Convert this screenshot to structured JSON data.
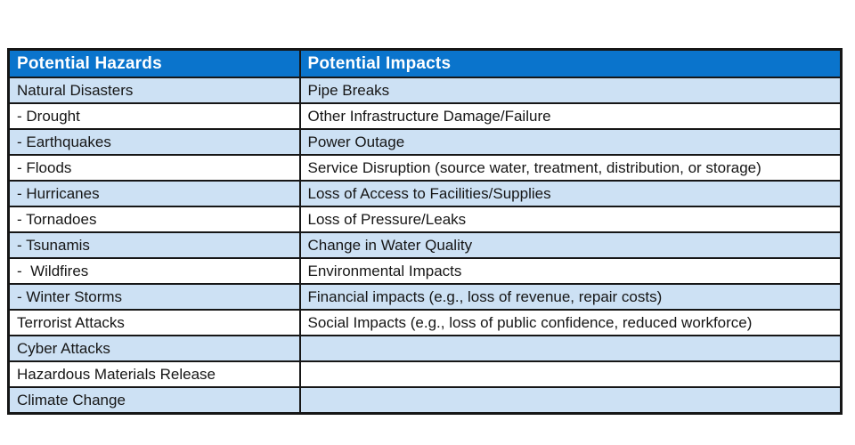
{
  "colors": {
    "header_background": "#0a74cc",
    "header_text": "#ffffff",
    "shaded_row_background": "#cde1f4",
    "plain_row_background": "#ffffff",
    "border": "#161616",
    "body_text": "#161616"
  },
  "table": {
    "columns": [
      {
        "label": "Potential Hazards"
      },
      {
        "label": "Potential Impacts"
      }
    ],
    "rows": [
      {
        "hazard": "Natural Disasters",
        "impact": "Pipe Breaks"
      },
      {
        "hazard": "- Drought",
        "impact": "Other Infrastructure Damage/Failure"
      },
      {
        "hazard": "- Earthquakes",
        "impact": "Power Outage"
      },
      {
        "hazard": "- Floods",
        "impact": "Service Disruption (source water, treatment, distribution, or storage)"
      },
      {
        "hazard": "- Hurricanes",
        "impact": "Loss of Access to Facilities/Supplies"
      },
      {
        "hazard": "- Tornadoes",
        "impact": "Loss of Pressure/Leaks"
      },
      {
        "hazard": "- Tsunamis",
        "impact": "Change in Water Quality"
      },
      {
        "hazard": "-  Wildfires",
        "impact": "Environmental Impacts"
      },
      {
        "hazard": "- Winter Storms",
        "impact": "Financial impacts (e.g., loss of revenue, repair costs)"
      },
      {
        "hazard": "Terrorist Attacks",
        "impact": "Social Impacts (e.g., loss of public confidence, reduced workforce)"
      },
      {
        "hazard": "Cyber Attacks",
        "impact": ""
      },
      {
        "hazard": "Hazardous Materials Release",
        "impact": ""
      },
      {
        "hazard": "Climate Change",
        "impact": ""
      }
    ]
  }
}
